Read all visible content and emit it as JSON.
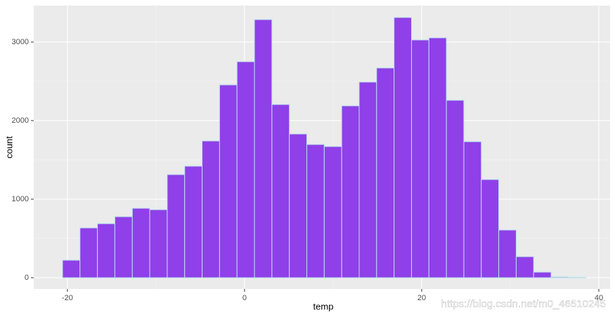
{
  "chart_data": {
    "type": "histogram",
    "xlabel": "temp",
    "ylabel": "count",
    "bins": [
      -20.55,
      -18.58,
      -16.61,
      -14.64,
      -12.67,
      -10.7,
      -8.73,
      -6.76,
      -4.79,
      -2.82,
      -0.85,
      1.12,
      3.09,
      5.06,
      7.03,
      9.0,
      10.97,
      12.94,
      14.91,
      16.88,
      18.85,
      20.82,
      22.79,
      24.76,
      26.73,
      28.7,
      30.67,
      32.64,
      34.61,
      36.58,
      38.55
    ],
    "values": [
      223,
      634,
      688,
      777,
      884,
      866,
      1313,
      1420,
      1741,
      2455,
      2750,
      3286,
      2205,
      1830,
      1696,
      1670,
      2188,
      2491,
      2670,
      3313,
      3027,
      3054,
      2259,
      1732,
      1250,
      607,
      268,
      71,
      10,
      5
    ],
    "color": "#8f40e8",
    "edgecolor": "#b8e2ee",
    "xlim": [
      -23.8,
      41.27
    ],
    "ylim": [
      -143,
      3464
    ],
    "xticks": [
      -20,
      0,
      20,
      40
    ],
    "yticks": [
      0,
      1000,
      2000,
      3000
    ],
    "xminor": [
      -10,
      10,
      30
    ],
    "yminor": [
      500,
      1500,
      2500
    ],
    "grid": true,
    "watermark": "https://blog.csdn.net/m0_46510245"
  }
}
